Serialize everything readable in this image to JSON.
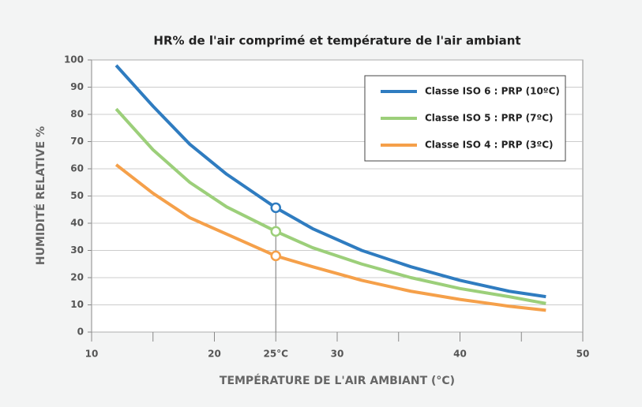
{
  "chart_data": {
    "type": "line",
    "title": "HR% de l'air comprimé et température de l'air ambiant",
    "xlabel": "TEMPÉRATURE DE L'AIR AMBIANT (°C)",
    "ylabel": "HUMIDITÉ RELATIVE %",
    "x": [
      12,
      15,
      18,
      21,
      25,
      28,
      32,
      36,
      40,
      44,
      47
    ],
    "series": [
      {
        "name": "Classe ISO 6 : PRP (10ºC)",
        "color": "#2f7cc0",
        "values": [
          98,
          83,
          69,
          58,
          45.7,
          38,
          30,
          24,
          19,
          15,
          13
        ]
      },
      {
        "name": "Classe ISO 5 : PRP (7ºC)",
        "color": "#9ccf7a",
        "values": [
          82,
          67,
          55,
          46,
          37,
          31,
          25,
          20,
          16,
          13,
          10.5
        ]
      },
      {
        "name": "Classe ISO 4 : PRP (3ºC)",
        "color": "#f5a04a",
        "values": [
          61.5,
          51,
          42,
          36,
          28,
          24,
          19,
          15,
          12,
          9.5,
          8
        ]
      }
    ],
    "highlight_x": 25,
    "xlim": [
      10,
      50
    ],
    "xticks": [
      10,
      20,
      {
        "value": 25,
        "label": "25°C"
      },
      30,
      40,
      50
    ],
    "xminor_ticks": [
      15,
      35,
      45
    ],
    "ylim": [
      0,
      100
    ],
    "yticks": [
      0,
      10,
      20,
      30,
      40,
      50,
      60,
      70,
      80,
      90,
      100
    ],
    "grid": true,
    "legend": "upper right"
  }
}
